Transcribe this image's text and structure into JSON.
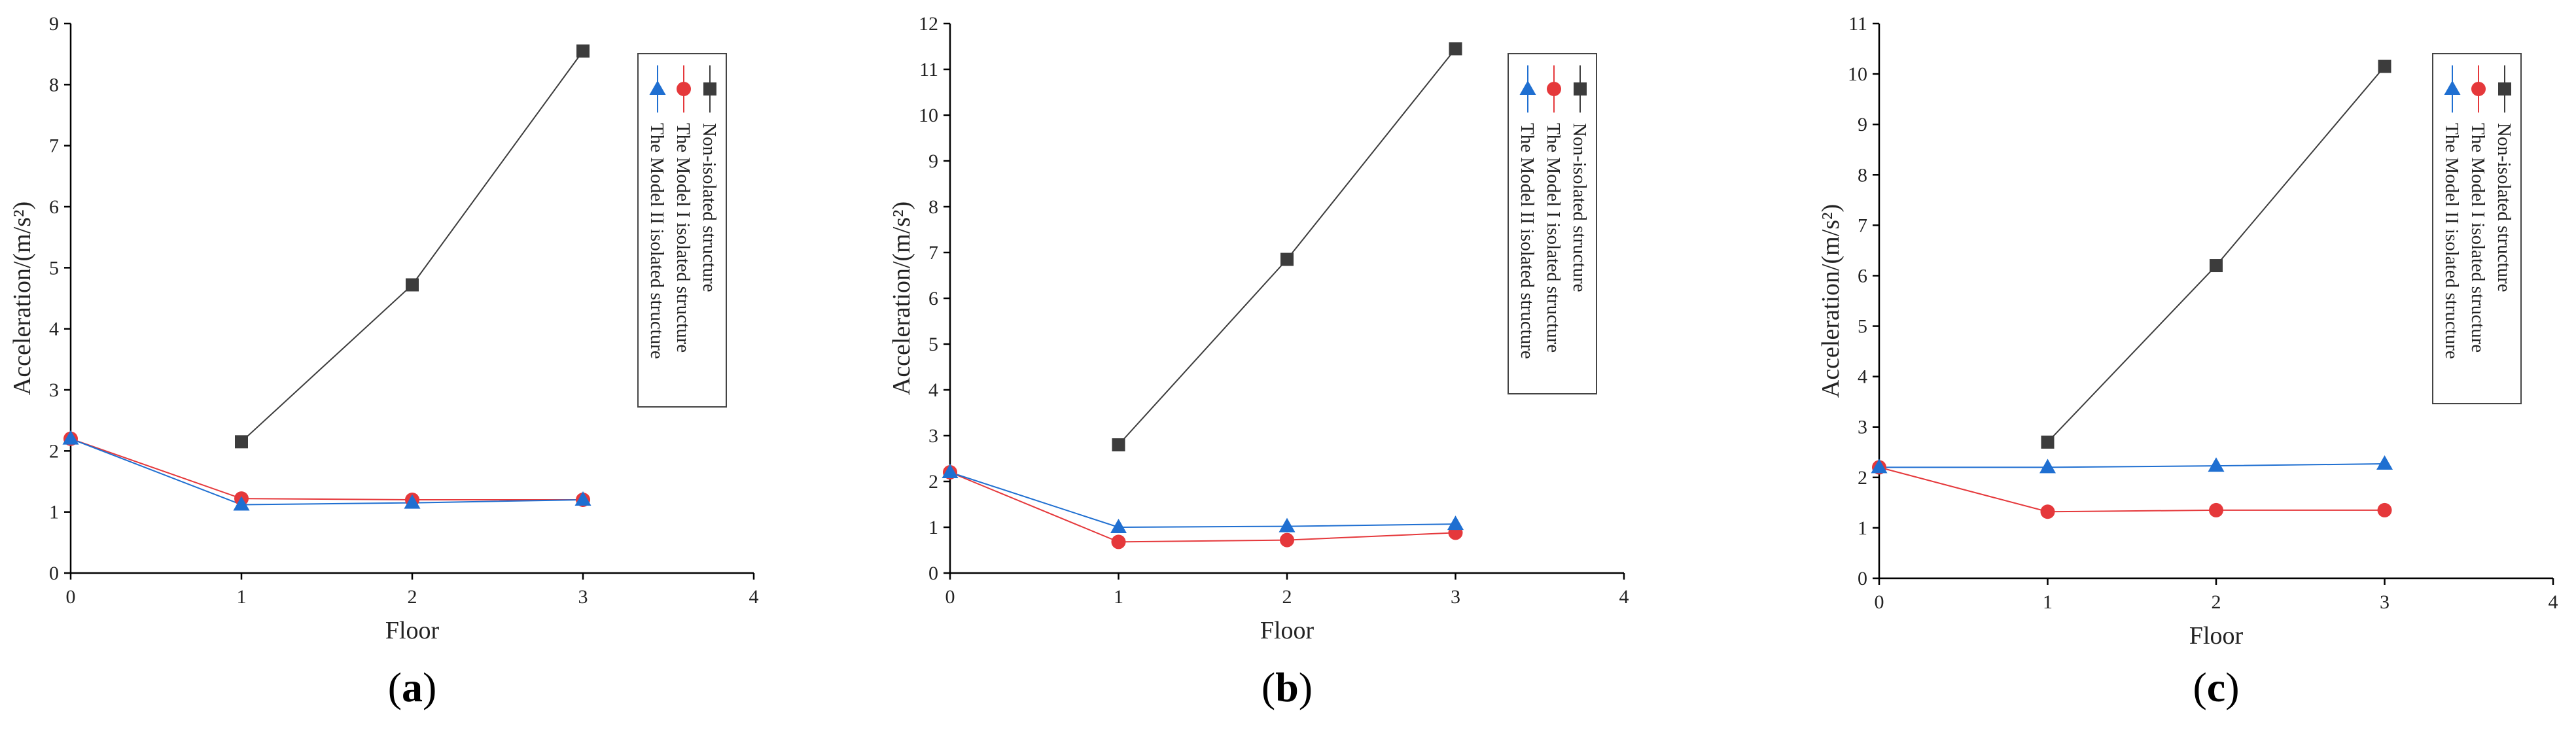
{
  "figure": {
    "x_label": "Floor",
    "y_label": "Acceleration/(m/s²)",
    "colors": {
      "non_isolated": "#3c3c3c",
      "model_i": "#e5383b",
      "model_ii": "#1f6fd1"
    }
  },
  "chart_data": [
    {
      "type": "line",
      "panel_label": "a",
      "xlabel": "Floor",
      "ylabel": "Acceleration/(m/s²)",
      "xlim": [
        0,
        4
      ],
      "ylim": [
        0,
        9
      ],
      "x_ticks": [
        0,
        1,
        2,
        3,
        4
      ],
      "y_ticks": [
        0,
        1,
        2,
        3,
        4,
        5,
        6,
        7,
        8,
        9
      ],
      "legend": [
        "Non-isolated structure",
        "The Model I isolated structure",
        "The Model II isolated structure"
      ],
      "series": [
        {
          "name": "Non-isolated structure",
          "marker": "square",
          "color": "#3c3c3c",
          "x": [
            1,
            2,
            3
          ],
          "y": [
            2.15,
            4.72,
            8.55
          ]
        },
        {
          "name": "The Model I isolated structure",
          "marker": "circle",
          "color": "#e5383b",
          "x": [
            0,
            1,
            2,
            3
          ],
          "y": [
            2.2,
            1.22,
            1.2,
            1.2
          ]
        },
        {
          "name": "The Model II isolated structure",
          "marker": "triangle",
          "color": "#1f6fd1",
          "x": [
            0,
            1,
            2,
            3
          ],
          "y": [
            2.2,
            1.12,
            1.15,
            1.2
          ]
        }
      ]
    },
    {
      "type": "line",
      "panel_label": "b",
      "xlabel": "Floor",
      "ylabel": "Acceleration/(m/s²)",
      "xlim": [
        0,
        4
      ],
      "ylim": [
        0,
        12
      ],
      "x_ticks": [
        0,
        1,
        2,
        3,
        4
      ],
      "y_ticks": [
        0,
        1,
        2,
        3,
        4,
        5,
        6,
        7,
        8,
        9,
        10,
        11,
        12
      ],
      "legend": [
        "Non-isolated structure",
        "The Model I isolated structure",
        "The Model II isolated structure"
      ],
      "series": [
        {
          "name": "Non-isolated structure",
          "marker": "square",
          "color": "#3c3c3c",
          "x": [
            1,
            2,
            3
          ],
          "y": [
            2.8,
            6.85,
            11.45
          ]
        },
        {
          "name": "The Model I isolated structure",
          "marker": "circle",
          "color": "#e5383b",
          "x": [
            0,
            1,
            2,
            3
          ],
          "y": [
            2.2,
            0.68,
            0.72,
            0.88
          ]
        },
        {
          "name": "The Model II isolated structure",
          "marker": "triangle",
          "color": "#1f6fd1",
          "x": [
            0,
            1,
            2,
            3
          ],
          "y": [
            2.2,
            1.0,
            1.02,
            1.07
          ]
        }
      ]
    },
    {
      "type": "line",
      "panel_label": "c",
      "xlabel": "Floor",
      "ylabel": "Acceleration/(m/s²)",
      "xlim": [
        0,
        4
      ],
      "ylim": [
        0,
        11
      ],
      "x_ticks": [
        0,
        1,
        2,
        3,
        4
      ],
      "y_ticks": [
        0,
        1,
        2,
        3,
        4,
        5,
        6,
        7,
        8,
        9,
        10,
        11
      ],
      "legend": [
        "Non-isolated structure",
        "The Model I isolated structure",
        "The Model II isolated structure"
      ],
      "series": [
        {
          "name": "Non-isolated structure",
          "marker": "square",
          "color": "#3c3c3c",
          "x": [
            1,
            2,
            3
          ],
          "y": [
            2.7,
            6.2,
            10.15
          ]
        },
        {
          "name": "The Model I isolated structure",
          "marker": "circle",
          "color": "#e5383b",
          "x": [
            0,
            1,
            2,
            3
          ],
          "y": [
            2.2,
            1.32,
            1.35,
            1.35
          ]
        },
        {
          "name": "The Model II isolated structure",
          "marker": "triangle",
          "color": "#1f6fd1",
          "x": [
            0,
            1,
            2,
            3
          ],
          "y": [
            2.2,
            2.2,
            2.23,
            2.27
          ]
        }
      ]
    }
  ]
}
